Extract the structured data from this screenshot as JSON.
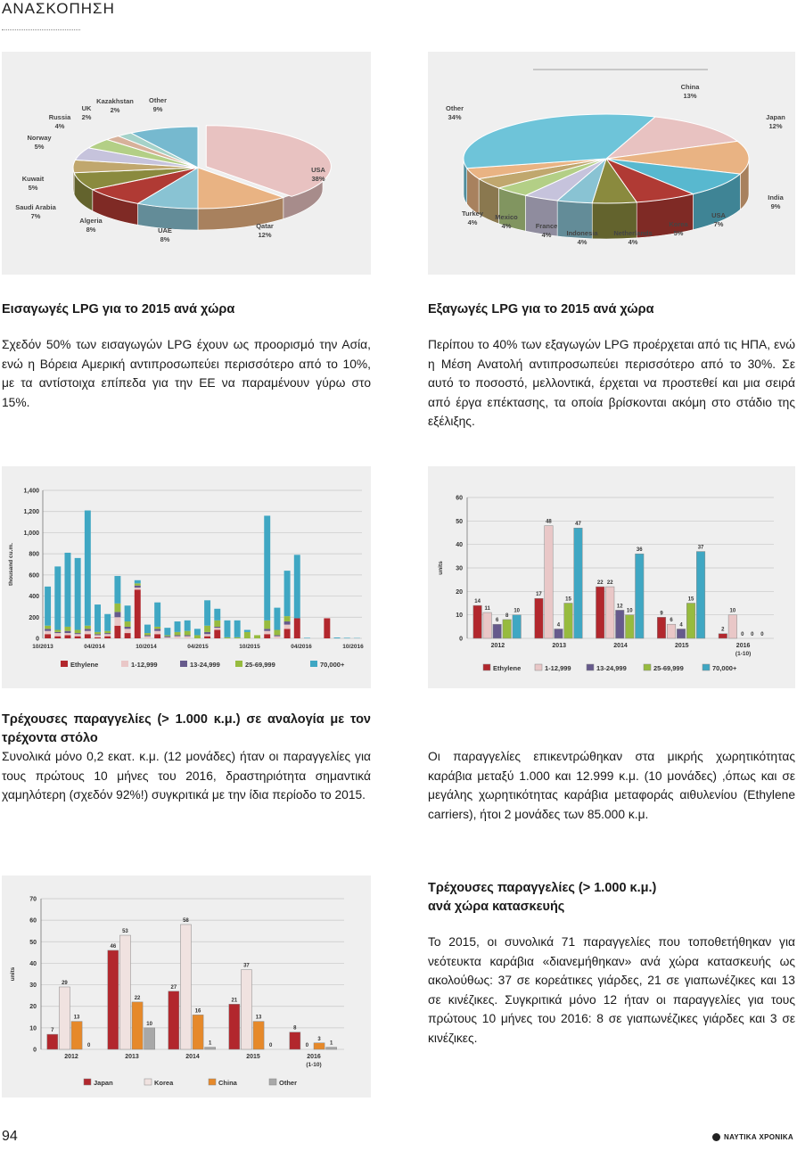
{
  "header": {
    "section": "ΑΝΑΣΚΟΠΗΣΗ"
  },
  "footer": {
    "page_number": "94",
    "brand": "ΝΑΥΤΙΚΑ ΧΡΟΝΙΚΑ"
  },
  "colors": {
    "red": "#b2272d",
    "pink": "#e9c7c7",
    "purple": "#665a8c",
    "green": "#97bb3f",
    "blue": "#3fa7c3",
    "orange": "#e6892a",
    "grey": "#a8a8a8"
  },
  "sections": {
    "imports": {
      "title": "Εισαγωγές LPG για το 2015 ανά χώρα",
      "text": "Σχεδόν 50% των εισαγωγών LPG έχουν ως προορισμό την Ασία, ενώ η Βόρεια Αμερική αντιπροσωπεύει περισσότερο από το 10%, με τα αντίστοιχα επίπεδα για την ΕΕ να παραμένουν γύρω στο 15%."
    },
    "exports": {
      "title": "Εξαγωγές LPG για το 2015 ανά χώρα",
      "text": "Περίπου το 40% των εξαγωγών LPG προέρχεται από τις ΗΠΑ, ενώ η Μέση Ανατολή αντιπροσωπεύει περισσότερο από το 30%. Σε αυτό το ποσοστό, μελλοντικά, έρχεται να προστεθεί και μια σειρά από έργα επέκτασης, τα οποία βρίσκονται ακόμη στο στάδιο της εξέλιξης."
    },
    "orderbook_fleet": {
      "title": "Τρέχουσες παραγγελίες (> 1.000 κ.μ.) σε αναλογία με τον τρέχοντα στόλο",
      "text": "Συνολικά μόνο 0,2 εκατ. κ.μ. (12 μονάδες) ήταν οι παραγγελίες για τους πρώτους 10 μήνες του 2016, δραστηριότητα σημαντικά χαμηλότερη (σχεδόν 92%!) συγκριτικά με την ίδια περίοδο το 2015."
    },
    "orders_focus": {
      "text": "Οι παραγγελίες επικεντρώθηκαν στα μικρής χωρητικότητας καράβια μεταξύ 1.000 και 12.999 κ.μ. (10 μονάδες) ,όπως και σε μεγάλης χωρητικότητας καράβια μεταφοράς αιθυλενίου (Ethylene carriers), ήτοι 2 μονάδες των 85.000 κ.μ."
    },
    "orderbook_country": {
      "title_line1": "Τρέχουσες παραγγελίες (> 1.000 κ.μ.)",
      "title_line2": "ανά χώρα κατασκευής",
      "text": "Το 2015, οι συνολικά 71 παραγγελίες που τοποθετήθηκαν για νεότευκτα καράβια «διανεμήθηκαν» ανά χώρα κατασκευής ως ακολούθως: 37 σε κορεάτικες γιάρδες, 21 σε γιαπωνέζικες και 13 σε κινέζικες. Συγκριτικά μόνο 12 ήταν οι παραγγελίες για τους πρώτους 10 μήνες του 2016: 8 σε γιαπωνέζικες γιάρδες και 3 σε κινέζικες."
    }
  },
  "chart_data": [
    {
      "type": "pie",
      "labels": [
        "USA",
        "Qatar",
        "UAE",
        "Algeria",
        "Saudi Arabia",
        "Kuwait",
        "Norway",
        "Russia",
        "UK",
        "Kazakhstan",
        "Other"
      ],
      "values": [
        38,
        12,
        8,
        8,
        7,
        5,
        5,
        4,
        2,
        2,
        9
      ],
      "value_labels": [
        "38%",
        "12%",
        "8%",
        "8%",
        "7%",
        "5%",
        "5%",
        "4%",
        "2%",
        "2%",
        "9%"
      ],
      "colors": [
        "#e8c2c1",
        "#e9b383",
        "#89c3d3",
        "#b03a34",
        "#8a8a3e",
        "#c0a76e",
        "#c6c3dc",
        "#b3cf86",
        "#d7b19a",
        "#a5d2c8",
        "#76b9cf"
      ]
    },
    {
      "type": "pie",
      "labels": [
        "China",
        "Japan",
        "India",
        "USA",
        "Korea",
        "Netherlands",
        "Indonesia",
        "France",
        "Mexico",
        "Turkey",
        "Other"
      ],
      "values": [
        13,
        12,
        9,
        7,
        5,
        4,
        4,
        4,
        4,
        4,
        34
      ],
      "value_labels": [
        "13%",
        "12%",
        "9%",
        "7%",
        "5%",
        "4%",
        "4%",
        "4%",
        "4%",
        "4%",
        "34%"
      ],
      "colors": [
        "#e8c2c1",
        "#e9b383",
        "#58b8cf",
        "#b03a34",
        "#8a8a3e",
        "#89c3d3",
        "#c6c3dc",
        "#b3cf86",
        "#c0a76e",
        "#e9b383",
        "#6ec4d9"
      ]
    },
    {
      "type": "bar",
      "stacked": true,
      "ylabel": "thousand cu.m.",
      "ylim": [
        0,
        1400
      ],
      "yticks": [
        "0",
        "200",
        "400",
        "600",
        "800",
        "1,000",
        "1,200",
        "1,400"
      ],
      "xtick_labels": [
        "10/2013",
        "04/2014",
        "10/2014",
        "04/2015",
        "10/2015",
        "04/2016",
        "10/2016"
      ],
      "legend": [
        "Ethylene",
        "1-12,999",
        "13-24,999",
        "25-69,999",
        "70,000+"
      ],
      "legend_placement": "bottom",
      "grid": true,
      "stacks": [
        [
          40,
          30,
          20,
          30,
          370
        ],
        [
          20,
          30,
          10,
          20,
          600
        ],
        [
          30,
          20,
          20,
          40,
          700
        ],
        [
          20,
          20,
          10,
          30,
          680
        ],
        [
          40,
          30,
          20,
          30,
          1090
        ],
        [
          10,
          20,
          10,
          20,
          260
        ],
        [
          20,
          20,
          10,
          20,
          160
        ],
        [
          120,
          80,
          50,
          80,
          260
        ],
        [
          50,
          40,
          20,
          50,
          150
        ],
        [
          460,
          20,
          20,
          20,
          30
        ],
        [
          0,
          20,
          10,
          20,
          80
        ],
        [
          40,
          30,
          20,
          20,
          230
        ],
        [
          0,
          10,
          10,
          10,
          70
        ],
        [
          0,
          20,
          10,
          30,
          100
        ],
        [
          0,
          20,
          10,
          40,
          100
        ],
        [
          0,
          0,
          0,
          30,
          60
        ],
        [
          20,
          20,
          20,
          60,
          240
        ],
        [
          80,
          20,
          10,
          60,
          110
        ],
        [
          0,
          0,
          0,
          10,
          160
        ],
        [
          0,
          0,
          0,
          10,
          160
        ],
        [
          0,
          0,
          0,
          60,
          20
        ],
        [
          0,
          0,
          0,
          30,
          0
        ],
        [
          40,
          30,
          20,
          80,
          990
        ],
        [
          0,
          20,
          10,
          50,
          210
        ],
        [
          90,
          40,
          30,
          50,
          430
        ],
        [
          190,
          0,
          0,
          0,
          600
        ],
        [
          0,
          0,
          0,
          0,
          5
        ],
        [
          0,
          0,
          0,
          0,
          0
        ],
        [
          190,
          0,
          0,
          0,
          0
        ],
        [
          0,
          0,
          0,
          0,
          8
        ],
        [
          0,
          0,
          0,
          0,
          5
        ],
        [
          0,
          0,
          0,
          0,
          3
        ]
      ]
    },
    {
      "type": "bar",
      "ylabel": "units",
      "ylim": [
        0,
        60
      ],
      "yticks": [
        "0",
        "10",
        "20",
        "30",
        "40",
        "50",
        "60"
      ],
      "categories": [
        "2012",
        "2013",
        "2014",
        "2015",
        "2016"
      ],
      "category_sublabels": [
        "",
        "",
        "",
        "",
        "(1-10)"
      ],
      "legend_placement": "bottom",
      "grid": true,
      "series": [
        {
          "name": "Ethylene",
          "values": [
            14,
            17,
            22,
            9,
            2
          ]
        },
        {
          "name": "1-12,999",
          "values": [
            11,
            48,
            22,
            6,
            10
          ]
        },
        {
          "name": "13-24,999",
          "values": [
            6,
            4,
            12,
            4,
            0
          ]
        },
        {
          "name": "25-69,999",
          "values": [
            8,
            15,
            10,
            15,
            0
          ]
        },
        {
          "name": "70,000+",
          "values": [
            10,
            47,
            36,
            37,
            0
          ]
        }
      ]
    },
    {
      "type": "bar",
      "ylabel": "units",
      "ylim": [
        0,
        70
      ],
      "yticks": [
        "0",
        "10",
        "20",
        "30",
        "40",
        "50",
        "60",
        "70"
      ],
      "categories": [
        "2012",
        "2013",
        "2014",
        "2015",
        "2016"
      ],
      "category_sublabels": [
        "",
        "",
        "",
        "",
        "(1-10)"
      ],
      "legend_placement": "bottom",
      "grid": true,
      "series": [
        {
          "name": "Japan",
          "values": [
            7,
            46,
            27,
            21,
            8
          ]
        },
        {
          "name": "Korea",
          "values": [
            29,
            53,
            58,
            37,
            0
          ]
        },
        {
          "name": "China",
          "values": [
            13,
            22,
            16,
            13,
            3
          ]
        },
        {
          "name": "Other",
          "values": [
            0,
            10,
            1,
            0,
            1
          ]
        }
      ]
    }
  ]
}
